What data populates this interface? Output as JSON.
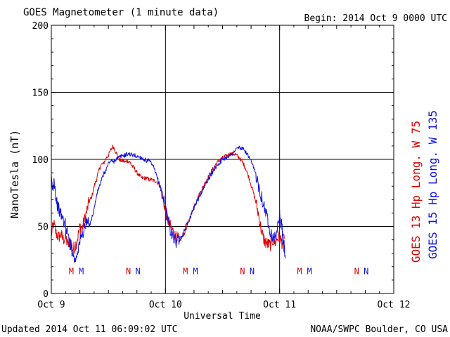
{
  "header": {
    "title": "GOES Magnetometer (1 minute data)",
    "begin": "Begin:  2014 Oct 9 0000 UTC"
  },
  "footer": {
    "updated": "Updated 2014 Oct 11 06:09:02 UTC",
    "source": "NOAA/SWPC Boulder, CO USA"
  },
  "chart_data": {
    "type": "line",
    "title": "GOES Magnetometer (1 minute data)",
    "xlabel": "Universal Time",
    "ylabel": "NanoTesla (nT)",
    "x_unit": "hours since 2014 Oct 9 0000 UTC",
    "xlim": [
      0,
      72
    ],
    "ylim": [
      0,
      200
    ],
    "x_ticks": [
      {
        "value": 0,
        "label": "Oct 9"
      },
      {
        "value": 24,
        "label": "Oct 10"
      },
      {
        "value": 48,
        "label": "Oct 11"
      },
      {
        "value": 72,
        "label": "Oct 12"
      }
    ],
    "y_ticks": [
      0,
      50,
      100,
      150,
      200
    ],
    "grid": true,
    "legend_position": "right-vertical",
    "colors": {
      "goes13": "#e00000",
      "goes15": "#1010e0"
    },
    "series": [
      {
        "name": "GOES 13 Hp  Long. W 75",
        "color": "#e00000",
        "points": [
          [
            0,
            44
          ],
          [
            0.5,
            52
          ],
          [
            1,
            45
          ],
          [
            1.5,
            42
          ],
          [
            2,
            44
          ],
          [
            2.5,
            40
          ],
          [
            3,
            42
          ],
          [
            3.5,
            36
          ],
          [
            4,
            40
          ],
          [
            4.5,
            33
          ],
          [
            5,
            35
          ],
          [
            5.5,
            41
          ],
          [
            6,
            50
          ],
          [
            6.5,
            49
          ],
          [
            7,
            55
          ],
          [
            7.5,
            62
          ],
          [
            8,
            69
          ],
          [
            8.5,
            72
          ],
          [
            9,
            80
          ],
          [
            9.5,
            85
          ],
          [
            10,
            92
          ],
          [
            10.5,
            96
          ],
          [
            11,
            97
          ],
          [
            11.5,
            101
          ],
          [
            12,
            103
          ],
          [
            12.5,
            107
          ],
          [
            13,
            110
          ],
          [
            13.5,
            106
          ],
          [
            14,
            102
          ],
          [
            14.5,
            99
          ],
          [
            15,
            99
          ],
          [
            15.5,
            98
          ],
          [
            16,
            99
          ],
          [
            16.5,
            98
          ],
          [
            17,
            95
          ],
          [
            17.5,
            93
          ],
          [
            18,
            90
          ],
          [
            18.5,
            88
          ],
          [
            19,
            86
          ],
          [
            19.5,
            86
          ],
          [
            20,
            86
          ],
          [
            20.5,
            85
          ],
          [
            21,
            85
          ],
          [
            21.5,
            84
          ],
          [
            22,
            84
          ],
          [
            22.5,
            82
          ],
          [
            23,
            79
          ],
          [
            23.5,
            70
          ],
          [
            24,
            62
          ],
          [
            24.5,
            55
          ],
          [
            25,
            50
          ],
          [
            25.5,
            47
          ],
          [
            26,
            43
          ],
          [
            26.5,
            41
          ],
          [
            27,
            39
          ],
          [
            27.5,
            42
          ],
          [
            28,
            45
          ],
          [
            28.5,
            50
          ],
          [
            29,
            55
          ],
          [
            29.5,
            60
          ],
          [
            30,
            65
          ],
          [
            30.5,
            69
          ],
          [
            31,
            73
          ],
          [
            31.5,
            77
          ],
          [
            32,
            80
          ],
          [
            32.5,
            84
          ],
          [
            33,
            87
          ],
          [
            33.5,
            90
          ],
          [
            34,
            93
          ],
          [
            34.5,
            96
          ],
          [
            35,
            98
          ],
          [
            35.5,
            100
          ],
          [
            36,
            101
          ],
          [
            36.5,
            102
          ],
          [
            37,
            103
          ],
          [
            37.5,
            104
          ],
          [
            38,
            104
          ],
          [
            38.5,
            104
          ],
          [
            39,
            103
          ],
          [
            39.5,
            101
          ],
          [
            40,
            99
          ],
          [
            40.5,
            96
          ],
          [
            41,
            92
          ],
          [
            41.5,
            87
          ],
          [
            42,
            81
          ],
          [
            42.5,
            75
          ],
          [
            43,
            68
          ],
          [
            43.5,
            60
          ],
          [
            44,
            50
          ],
          [
            44.5,
            42
          ],
          [
            45,
            38
          ],
          [
            45.5,
            37
          ],
          [
            46,
            36
          ],
          [
            46.5,
            40
          ],
          [
            47,
            38
          ],
          [
            47.5,
            41
          ],
          [
            48,
            42
          ],
          [
            48.5,
            38
          ],
          [
            49,
            41
          ]
        ]
      },
      {
        "name": "GOES 15 Hp  Long. W 135",
        "color": "#1010e0",
        "points": [
          [
            0,
            84
          ],
          [
            0.3,
            77
          ],
          [
            0.6,
            86
          ],
          [
            1,
            70
          ],
          [
            1.5,
            63
          ],
          [
            2,
            59
          ],
          [
            2.5,
            55
          ],
          [
            3,
            51
          ],
          [
            3.5,
            43
          ],
          [
            4,
            36
          ],
          [
            4.5,
            31
          ],
          [
            5,
            24
          ],
          [
            5.5,
            32
          ],
          [
            6,
            39
          ],
          [
            6.5,
            44
          ],
          [
            7,
            49
          ],
          [
            7.5,
            53
          ],
          [
            8,
            51
          ],
          [
            8.5,
            56
          ],
          [
            9,
            63
          ],
          [
            9.5,
            73
          ],
          [
            10,
            79
          ],
          [
            10.5,
            84
          ],
          [
            11,
            89
          ],
          [
            11.5,
            92
          ],
          [
            12,
            97
          ],
          [
            12.5,
            99
          ],
          [
            13,
            98
          ],
          [
            13.5,
            100
          ],
          [
            14,
            101
          ],
          [
            14.5,
            102
          ],
          [
            15,
            103
          ],
          [
            15.5,
            103
          ],
          [
            16,
            104
          ],
          [
            16.5,
            104
          ],
          [
            17,
            103
          ],
          [
            17.5,
            103
          ],
          [
            18,
            102
          ],
          [
            18.5,
            102
          ],
          [
            19,
            101
          ],
          [
            19.5,
            100
          ],
          [
            20,
            99
          ],
          [
            20.5,
            99
          ],
          [
            21,
            97
          ],
          [
            21.5,
            94
          ],
          [
            22,
            89
          ],
          [
            22.5,
            84
          ],
          [
            23,
            78
          ],
          [
            23.5,
            72
          ],
          [
            24,
            64
          ],
          [
            24.5,
            56
          ],
          [
            25,
            48
          ],
          [
            25.5,
            43
          ],
          [
            26,
            40
          ],
          [
            26.5,
            38
          ],
          [
            27,
            40
          ],
          [
            27.5,
            43
          ],
          [
            28,
            48
          ],
          [
            28.5,
            52
          ],
          [
            29,
            55
          ],
          [
            29.5,
            60
          ],
          [
            30,
            64
          ],
          [
            30.5,
            68
          ],
          [
            31,
            71
          ],
          [
            31.5,
            75
          ],
          [
            32,
            78
          ],
          [
            32.5,
            82
          ],
          [
            33,
            85
          ],
          [
            33.5,
            88
          ],
          [
            34,
            91
          ],
          [
            34.5,
            94
          ],
          [
            35,
            96
          ],
          [
            35.5,
            98
          ],
          [
            36,
            100
          ],
          [
            36.5,
            101
          ],
          [
            37,
            102
          ],
          [
            37.5,
            103
          ],
          [
            38,
            104
          ],
          [
            38.5,
            106
          ],
          [
            39,
            108
          ],
          [
            39.5,
            109
          ],
          [
            40,
            108
          ],
          [
            40.5,
            107
          ],
          [
            41,
            105
          ],
          [
            41.5,
            102
          ],
          [
            42,
            98
          ],
          [
            42.5,
            94
          ],
          [
            43,
            89
          ],
          [
            43.5,
            82
          ],
          [
            44,
            75
          ],
          [
            44.5,
            68
          ],
          [
            45,
            62
          ],
          [
            45.5,
            55
          ],
          [
            46,
            48
          ],
          [
            46.5,
            43
          ],
          [
            47,
            41
          ],
          [
            47.5,
            48
          ],
          [
            48,
            58
          ],
          [
            48.5,
            49
          ],
          [
            48.7,
            38
          ],
          [
            49,
            34
          ],
          [
            49.2,
            27
          ]
        ]
      }
    ],
    "annotations": [
      {
        "label": "M",
        "x": 4.2,
        "y": 17,
        "series": "GOES 13 Hp  Long. W 75"
      },
      {
        "label": "M",
        "x": 6.3,
        "y": 17,
        "series": "GOES 15 Hp  Long. W 135"
      },
      {
        "label": "N",
        "x": 16.2,
        "y": 17,
        "series": "GOES 13 Hp  Long. W 75"
      },
      {
        "label": "N",
        "x": 18.2,
        "y": 17,
        "series": "GOES 15 Hp  Long. W 135"
      },
      {
        "label": "M",
        "x": 28.2,
        "y": 17,
        "series": "GOES 13 Hp  Long. W 75"
      },
      {
        "label": "M",
        "x": 30.3,
        "y": 17,
        "series": "GOES 15 Hp  Long. W 135"
      },
      {
        "label": "N",
        "x": 40.2,
        "y": 17,
        "series": "GOES 13 Hp  Long. W 75"
      },
      {
        "label": "N",
        "x": 42.2,
        "y": 17,
        "series": "GOES 15 Hp  Long. W 135"
      },
      {
        "label": "M",
        "x": 52.2,
        "y": 17,
        "series": "GOES 13 Hp  Long. W 75"
      },
      {
        "label": "M",
        "x": 54.3,
        "y": 17,
        "series": "GOES 15 Hp  Long. W 135"
      },
      {
        "label": "N",
        "x": 64.2,
        "y": 17,
        "series": "GOES 13 Hp  Long. W 75"
      },
      {
        "label": "N",
        "x": 66.2,
        "y": 17,
        "series": "GOES 15 Hp  Long. W 135"
      }
    ]
  }
}
